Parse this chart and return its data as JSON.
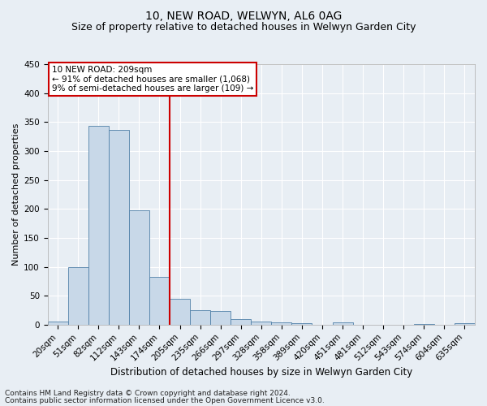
{
  "title": "10, NEW ROAD, WELWYN, AL6 0AG",
  "subtitle": "Size of property relative to detached houses in Welwyn Garden City",
  "xlabel": "Distribution of detached houses by size in Welwyn Garden City",
  "ylabel": "Number of detached properties",
  "footnote1": "Contains HM Land Registry data © Crown copyright and database right 2024.",
  "footnote2": "Contains public sector information licensed under the Open Government Licence v3.0.",
  "bar_labels": [
    "20sqm",
    "51sqm",
    "82sqm",
    "112sqm",
    "143sqm",
    "174sqm",
    "205sqm",
    "235sqm",
    "266sqm",
    "297sqm",
    "328sqm",
    "358sqm",
    "389sqm",
    "420sqm",
    "451sqm",
    "481sqm",
    "512sqm",
    "543sqm",
    "574sqm",
    "604sqm",
    "635sqm"
  ],
  "bar_values": [
    5,
    99,
    344,
    337,
    197,
    83,
    44,
    25,
    24,
    10,
    6,
    4,
    2,
    0,
    4,
    0,
    0,
    0,
    1,
    0,
    2
  ],
  "bar_color": "#c8d8e8",
  "bar_edge_color": "#5080a8",
  "vline_x_index": 6,
  "vline_color": "#cc0000",
  "annotation_line1": "10 NEW ROAD: 209sqm",
  "annotation_line2": "← 91% of detached houses are smaller (1,068)",
  "annotation_line3": "9% of semi-detached houses are larger (109) →",
  "annotation_box_color": "#cc0000",
  "ylim": [
    0,
    450
  ],
  "yticks": [
    0,
    50,
    100,
    150,
    200,
    250,
    300,
    350,
    400,
    450
  ],
  "bg_color": "#e8eef4",
  "plot_bg_color": "#e8eef4",
  "grid_color": "#ffffff",
  "title_fontsize": 10,
  "subtitle_fontsize": 9,
  "ylabel_fontsize": 8,
  "xlabel_fontsize": 8.5,
  "tick_fontsize": 7.5,
  "annotation_fontsize": 7.5,
  "footnote_fontsize": 6.5
}
